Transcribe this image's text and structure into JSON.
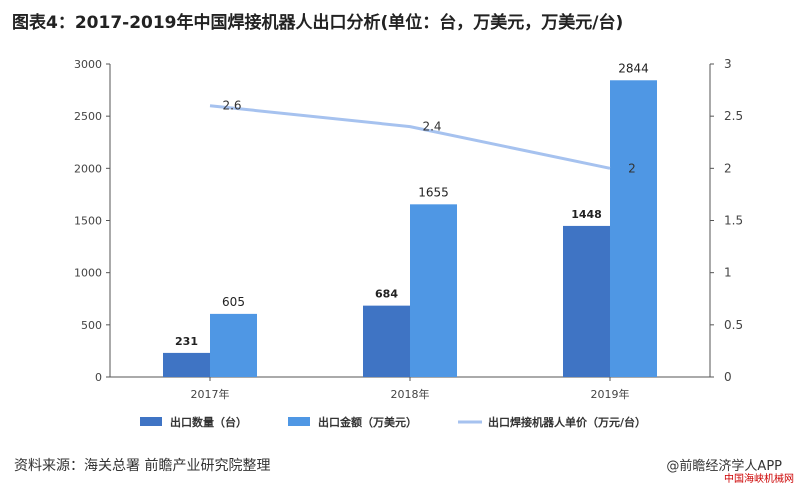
{
  "header": {
    "title": "图表4：2017-2019年中国焊接机器人出口分析(单位：台，万美元，万美元/台)"
  },
  "footer": {
    "source": "资料来源：海关总署 前瞻产业研究院整理",
    "brand": "@前瞻经济学人APP",
    "site": "中国海峡机械网"
  },
  "colors": {
    "quantity": "#3f74c4",
    "amount": "#4f97e4",
    "price": "#a6c2ef",
    "axis": "#555555",
    "grid": "#d9d9d9"
  },
  "chart_data": {
    "type": "bar",
    "categories": [
      "2017年",
      "2018年",
      "2019年"
    ],
    "series": [
      {
        "name": "出口数量（台）",
        "kind": "bar",
        "axis": "left",
        "values": [
          231,
          684,
          1448
        ]
      },
      {
        "name": "出口金额（万美元）",
        "kind": "bar",
        "axis": "left",
        "values": [
          605,
          1655,
          2844
        ]
      },
      {
        "name": "出口焊接机器人单价（万元/台）",
        "kind": "line",
        "axis": "right",
        "values": [
          2.6,
          2.4,
          2
        ]
      }
    ],
    "y_left": {
      "range": [
        0,
        3000
      ],
      "ticks": [
        "0",
        "500",
        "1000",
        "1500",
        "2000",
        "2500",
        "3000"
      ]
    },
    "y_right": {
      "range": [
        0,
        3
      ],
      "ticks": [
        "0",
        "0.5",
        "1",
        "1.5",
        "2",
        "2.5",
        "3"
      ]
    },
    "legend": "bottom",
    "grid": false
  }
}
